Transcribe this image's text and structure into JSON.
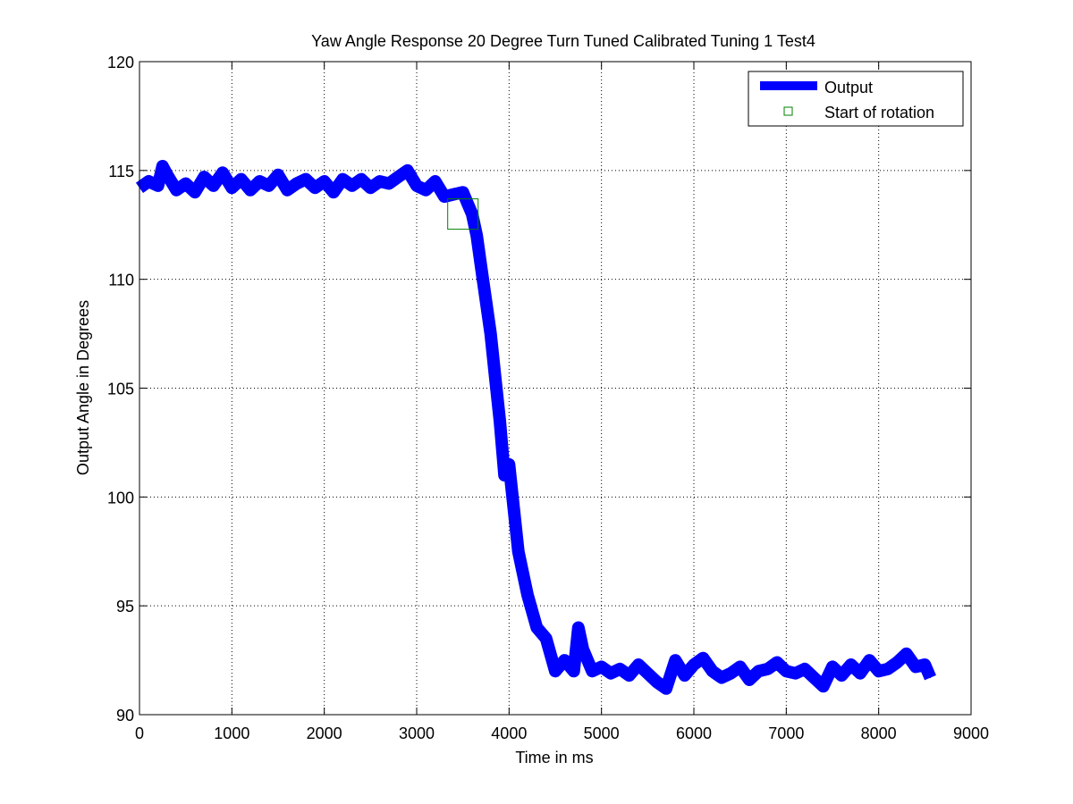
{
  "chart_data": {
    "type": "line",
    "title": "Yaw Angle Response 20 Degree Turn Tuned Calibrated Tuning 1 Test4",
    "xlabel": "Time in ms",
    "ylabel": "Output Angle in Degrees",
    "xlim": [
      0,
      9000
    ],
    "ylim": [
      90,
      120
    ],
    "xticks": [
      0,
      1000,
      2000,
      3000,
      4000,
      5000,
      6000,
      7000,
      8000,
      9000
    ],
    "yticks": [
      90,
      95,
      100,
      105,
      110,
      115,
      120
    ],
    "grid": true,
    "legend_position": "top-right",
    "series": [
      {
        "name": "Output",
        "color": "#0000ff",
        "style": "thick-line",
        "x": [
          0,
          100,
          200,
          250,
          300,
          400,
          500,
          600,
          700,
          800,
          900,
          1000,
          1100,
          1200,
          1300,
          1400,
          1500,
          1600,
          1700,
          1800,
          1900,
          2000,
          2100,
          2200,
          2300,
          2400,
          2500,
          2600,
          2700,
          2800,
          2900,
          3000,
          3100,
          3200,
          3300,
          3400,
          3500,
          3550,
          3600,
          3650,
          3700,
          3750,
          3800,
          3850,
          3900,
          3950,
          4000,
          4050,
          4100,
          4150,
          4200,
          4300,
          4400,
          4500,
          4600,
          4700,
          4750,
          4800,
          4900,
          5000,
          5100,
          5200,
          5300,
          5400,
          5500,
          5600,
          5700,
          5800,
          5900,
          6000,
          6100,
          6200,
          6300,
          6400,
          6500,
          6600,
          6700,
          6800,
          6900,
          7000,
          7100,
          7200,
          7300,
          7400,
          7500,
          7600,
          7700,
          7800,
          7900,
          8000,
          8100,
          8200,
          8300,
          8400,
          8500,
          8560
        ],
        "y": [
          114.2,
          114.5,
          114.3,
          115.2,
          114.8,
          114.1,
          114.4,
          114.0,
          114.7,
          114.3,
          114.9,
          114.2,
          114.6,
          114.1,
          114.5,
          114.3,
          114.8,
          114.1,
          114.4,
          114.6,
          114.2,
          114.5,
          114.0,
          114.6,
          114.3,
          114.6,
          114.2,
          114.5,
          114.4,
          114.7,
          115.0,
          114.3,
          114.1,
          114.5,
          113.8,
          113.9,
          114.0,
          113.5,
          113.0,
          112.0,
          110.5,
          109.0,
          107.5,
          105.5,
          103.5,
          101.0,
          101.5,
          99.5,
          97.5,
          96.5,
          95.5,
          94.0,
          93.5,
          92.0,
          92.5,
          92.0,
          94.0,
          93.0,
          92.0,
          92.2,
          91.9,
          92.1,
          91.8,
          92.3,
          91.9,
          91.5,
          91.2,
          92.5,
          91.8,
          92.3,
          92.6,
          92.0,
          91.7,
          91.9,
          92.2,
          91.6,
          92.0,
          92.1,
          92.4,
          92.0,
          91.9,
          92.1,
          91.7,
          91.3,
          92.2,
          91.8,
          92.3,
          91.9,
          92.5,
          92.0,
          92.1,
          92.4,
          92.8,
          92.2,
          92.3,
          91.7
        ]
      },
      {
        "name": "Start of rotation",
        "color": "#008000",
        "style": "square-marker",
        "x": [
          3500
        ],
        "y": [
          113
        ]
      }
    ]
  }
}
